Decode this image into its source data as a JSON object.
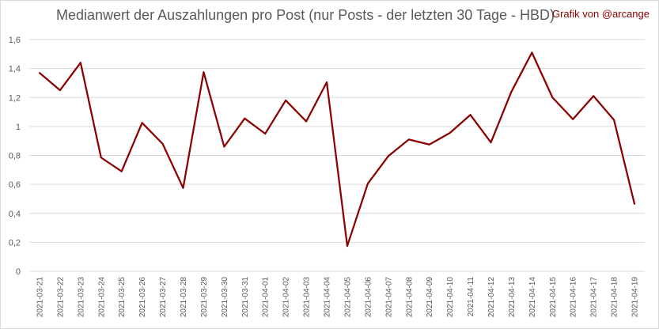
{
  "title": "Medianwert der Auszahlungen pro Post (nur Posts - der letzten 30 Tage - HBD)",
  "credit": "Grafik von @arcange",
  "colors": {
    "line": "#8B0000",
    "grid": "#d9d9d9",
    "text": "#595959"
  },
  "chart_data": {
    "type": "line",
    "title": "Medianwert der Auszahlungen pro Post (nur Posts - der letzten 30 Tage - HBD)",
    "xlabel": "",
    "ylabel": "",
    "ylim": [
      0,
      1.6
    ],
    "yticks": [
      0,
      0.2,
      0.4,
      0.6,
      0.8,
      1,
      1.2,
      1.4,
      1.6
    ],
    "ytick_labels": [
      "0",
      "0,2",
      "0,4",
      "0,6",
      "0,8",
      "1",
      "1,2",
      "1,4",
      "1,6"
    ],
    "grid": true,
    "legend": "none",
    "categories": [
      "2021-03-21",
      "2021-03-22",
      "2021-03-23",
      "2021-03-24",
      "2021-03-25",
      "2021-03-26",
      "2021-03-27",
      "2021-03-28",
      "2021-03-29",
      "2021-03-30",
      "2021-03-31",
      "2021-04-01",
      "2021-04-02",
      "2021-04-03",
      "2021-04-04",
      "2021-04-05",
      "2021-04-06",
      "2021-04-07",
      "2021-04-08",
      "2021-04-09",
      "2021-04-10",
      "2021-04-11",
      "2021-04-12",
      "2021-04-13",
      "2021-04-14",
      "2021-04-15",
      "2021-04-16",
      "2021-04-17",
      "2021-04-18",
      "2021-04-19"
    ],
    "series": [
      {
        "values": [
          1.37,
          1.25,
          1.44,
          0.785,
          0.69,
          1.025,
          0.88,
          0.575,
          1.375,
          0.86,
          1.055,
          0.95,
          1.18,
          1.035,
          1.305,
          0.175,
          0.605,
          0.795,
          0.91,
          0.875,
          0.955,
          1.08,
          0.89,
          1.24,
          1.51,
          1.2,
          1.05,
          1.21,
          1.045,
          0.465
        ]
      }
    ]
  }
}
